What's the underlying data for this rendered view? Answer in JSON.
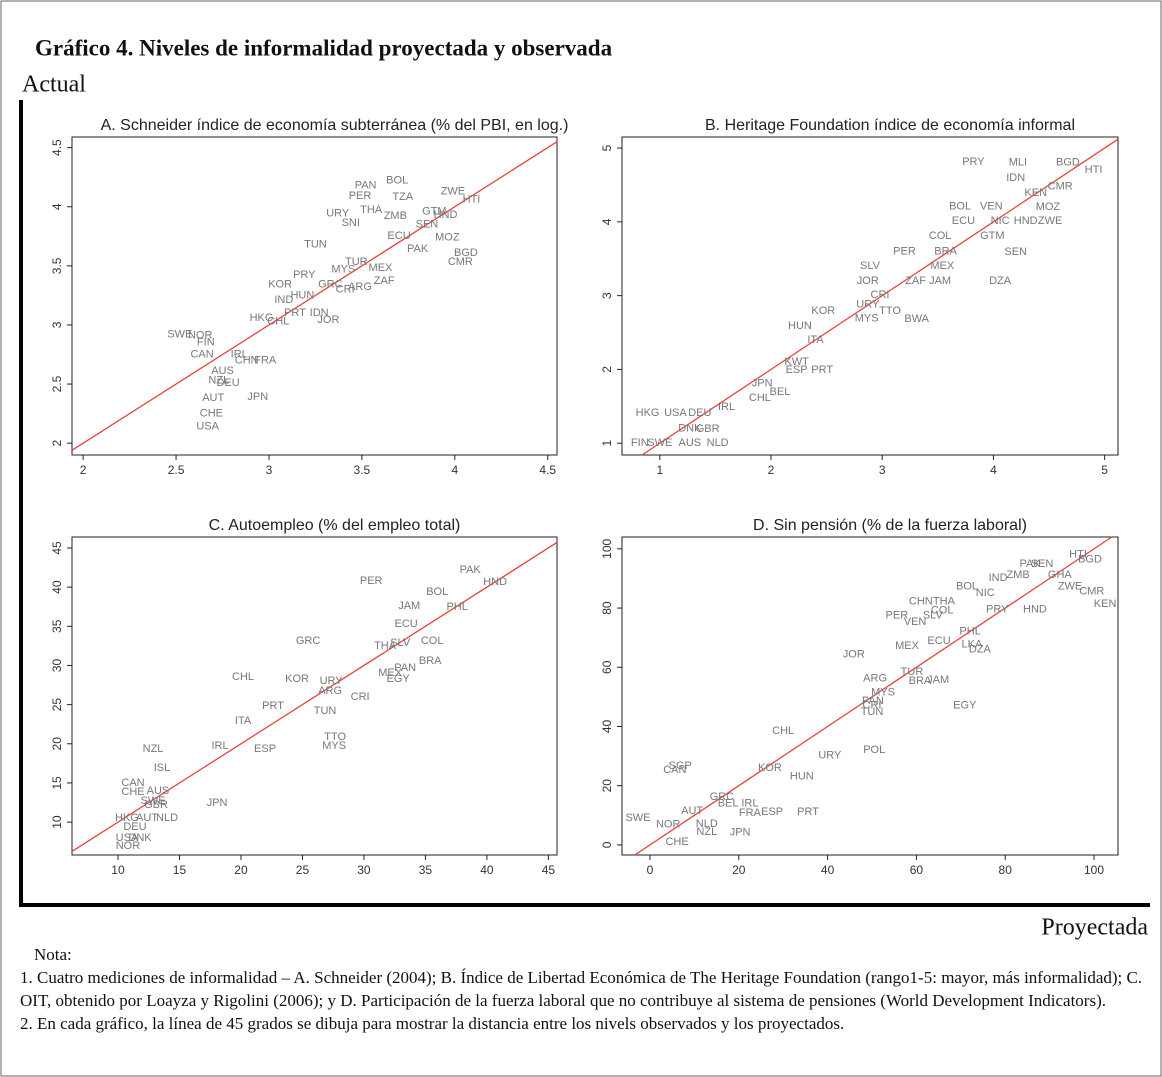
{
  "title": "Gráfico 4. Niveles de informalidad proyectada y observada",
  "y_label": "Actual",
  "x_label": "Proyectada",
  "notes": [
    "Nota:",
    "1. Cuatro mediciones de informalidad – A. Schneider (2004); B. Índice de Libertad Económica de The Heritage Foundation (rango1-5: mayor, más informalidad); C. OIT, obtenido por Loayza y Rigolini (2006); y D. Participación de la fuerza laboral que no contribuye al sistema de pensiones (World Development Indicators).",
    "2. En cada gráfico, la línea de 45 grados se dibuja para mostrar la distancia entre los nivels observados y los proyectados."
  ],
  "chart_data": [
    {
      "type": "scatter",
      "title": "A. Schneider índice de economía subterránea (% del PBI, en log.)",
      "diagonal": true,
      "diagonal_color": "#e8413c",
      "label_color": "#777777",
      "xlim": [
        1.94,
        4.55
      ],
      "ylim": [
        1.9,
        4.59
      ],
      "xticks": [
        2,
        2.5,
        3,
        3.5,
        4,
        4.5
      ],
      "yticks": [
        2,
        2.5,
        3,
        3.5,
        4,
        4.5
      ],
      "labels": [
        "PAN",
        "BOL",
        "PER",
        "TZA",
        "ZWE",
        "HTI",
        "URY",
        "THA",
        "ZMB",
        "SNI",
        "GTM",
        "HND",
        "SEN",
        "ECU",
        "MOZ",
        "TUN",
        "PAK",
        "BGD",
        "CMR",
        "MEX",
        "TUR",
        "ZAF",
        "PRY",
        "MYS",
        "KOR",
        "GRC",
        "CRI",
        "ARG",
        "HUN",
        "IND",
        "PRT",
        "IDN",
        "HKG",
        "CHL",
        "JOR",
        "SWE",
        "NOR",
        "FIN",
        "CAN",
        "IRL",
        "CHN",
        "FRA",
        "AUS",
        "NZL",
        "DEU",
        "AUT",
        "JPN",
        "CHE",
        "USA"
      ],
      "x": [
        3.52,
        3.69,
        3.49,
        3.72,
        3.99,
        4.09,
        3.37,
        3.55,
        3.68,
        3.44,
        3.89,
        3.95,
        3.85,
        3.7,
        3.96,
        3.25,
        3.8,
        4.06,
        4.03,
        3.6,
        3.47,
        3.62,
        3.19,
        3.4,
        3.06,
        3.33,
        3.41,
        3.49,
        3.18,
        3.08,
        3.14,
        3.27,
        2.96,
        3.05,
        3.32,
        2.52,
        2.63,
        2.66,
        2.64,
        2.84,
        2.88,
        2.98,
        2.75,
        2.73,
        2.78,
        2.7,
        2.94,
        2.69,
        2.67
      ],
      "values": [
        4.18,
        4.22,
        4.09,
        4.08,
        4.13,
        4.06,
        3.94,
        3.97,
        3.92,
        3.86,
        3.96,
        3.93,
        3.85,
        3.75,
        3.74,
        3.68,
        3.64,
        3.61,
        3.53,
        3.48,
        3.53,
        3.37,
        3.42,
        3.47,
        3.34,
        3.34,
        3.3,
        3.32,
        3.25,
        3.21,
        3.1,
        3.1,
        3.06,
        3.03,
        3.04,
        2.92,
        2.91,
        2.85,
        2.75,
        2.75,
        2.7,
        2.7,
        2.61,
        2.53,
        2.51,
        2.38,
        2.39,
        2.25,
        2.14
      ]
    },
    {
      "type": "scatter",
      "title": "B. Heritage Foundation índice de economía informal",
      "diagonal": true,
      "diagonal_color": "#e8413c",
      "label_color": "#777777",
      "xlim": [
        0.66,
        5.12
      ],
      "ylim": [
        0.84,
        5.15
      ],
      "xticks": [
        1,
        2,
        3,
        4,
        5
      ],
      "yticks": [
        1,
        2,
        3,
        4,
        5
      ],
      "labels": [
        "PRY",
        "MLI",
        "BGD",
        "HTI",
        "IDN",
        "KEN",
        "CMR",
        "BOL",
        "VEN",
        "MOZ",
        "ECU",
        "NIC",
        "HND",
        "ZWE",
        "GTM",
        "COL",
        "BRA",
        "PER",
        "SEN",
        "SLV",
        "MEX",
        "JOR",
        "ZAF",
        "JAM",
        "DZA",
        "CRI",
        "URY",
        "TTO",
        "KOR",
        "MYS",
        "BWA",
        "HUN",
        "ITA",
        "KWT",
        "ESP",
        "PRT",
        "JPN",
        "BEL",
        "CHL",
        "IRL",
        "HKG",
        "USA",
        "DEU",
        "DNK",
        "GBR",
        "FIN",
        "SWE",
        "AUS",
        "NLD"
      ],
      "x": [
        3.82,
        4.22,
        4.67,
        4.9,
        4.2,
        4.38,
        4.6,
        3.7,
        3.98,
        4.49,
        3.73,
        4.06,
        4.29,
        4.51,
        3.99,
        3.52,
        3.57,
        3.2,
        4.2,
        2.89,
        3.54,
        2.87,
        3.3,
        3.52,
        4.06,
        2.98,
        2.87,
        3.07,
        2.47,
        2.86,
        3.31,
        2.26,
        2.4,
        2.23,
        2.23,
        2.46,
        1.92,
        2.08,
        1.9,
        1.6,
        0.89,
        1.14,
        1.36,
        1.27,
        1.43,
        0.82,
        1.0,
        1.27,
        1.52
      ],
      "values": [
        4.81,
        4.8,
        4.8,
        4.7,
        4.59,
        4.39,
        4.48,
        4.21,
        4.21,
        4.2,
        4.01,
        4.01,
        4.01,
        4.01,
        3.81,
        3.81,
        3.6,
        3.6,
        3.59,
        3.4,
        3.4,
        3.2,
        3.2,
        3.2,
        3.2,
        3.01,
        2.88,
        2.79,
        2.79,
        2.69,
        2.68,
        2.59,
        2.4,
        2.1,
        1.99,
        1.99,
        1.81,
        1.69,
        1.61,
        1.49,
        1.41,
        1.41,
        1.41,
        1.2,
        1.19,
        1.0,
        1.0,
        1.0,
        1.0
      ]
    },
    {
      "type": "scatter",
      "title": "C. Autoempleo (% del empleo total)",
      "diagonal": true,
      "diagonal_color": "#e8413c",
      "label_color": "#777777",
      "xlim": [
        6.26,
        45.7
      ],
      "ylim": [
        5.8,
        46.4
      ],
      "xticks": [
        10,
        15,
        20,
        25,
        30,
        35,
        40,
        45
      ],
      "yticks": [
        10,
        15,
        20,
        25,
        30,
        35,
        40,
        45
      ],
      "labels": [
        "PAK",
        "HND",
        "PER",
        "BOL",
        "JAM",
        "PHL",
        "ECU",
        "GRC",
        "COL",
        "SLV",
        "THA",
        "BRA",
        "PAN",
        "MEX",
        "EGY",
        "CHL",
        "KOR",
        "URY",
        "ARG",
        "CRI",
        "PRT",
        "TUN",
        "ITA",
        "TTO",
        "MYS",
        "NZL",
        "IRL",
        "ESP",
        "ISL",
        "CAN",
        "CHE",
        "AUS",
        "SWE",
        "GBR",
        "JPN",
        "HKG",
        "AUT",
        "NLD",
        "DEU",
        "USA",
        "DNK",
        "NOR"
      ],
      "x": [
        38.64,
        40.67,
        30.59,
        35.96,
        33.68,
        37.58,
        33.43,
        25.46,
        35.55,
        32.95,
        31.72,
        35.39,
        33.35,
        32.13,
        32.78,
        20.17,
        24.56,
        27.33,
        27.25,
        29.69,
        22.61,
        26.84,
        20.17,
        27.66,
        27.58,
        12.85,
        18.3,
        21.96,
        13.58,
        11.22,
        11.22,
        13.25,
        12.85,
        13.09,
        18.06,
        10.73,
        12.36,
        13.99,
        11.38,
        10.73,
        11.79,
        10.81
      ],
      "values": [
        42.19,
        40.66,
        40.79,
        39.38,
        37.59,
        37.46,
        35.29,
        33.12,
        33.12,
        32.87,
        32.48,
        30.57,
        29.67,
        29.04,
        28.27,
        28.52,
        28.27,
        28.01,
        26.74,
        25.97,
        24.82,
        24.18,
        22.91,
        20.86,
        19.71,
        19.33,
        19.71,
        19.33,
        16.9,
        14.99,
        13.84,
        13.97,
        12.69,
        12.18,
        12.44,
        10.52,
        10.52,
        10.52,
        9.37,
        7.96,
        7.96,
        6.94
      ]
    },
    {
      "type": "scatter",
      "title": "D. Sin pensión (% de la fuerza laboral)",
      "diagonal": true,
      "diagonal_color": "#e8413c",
      "label_color": "#777777",
      "xlim": [
        -6.3,
        105.4
      ],
      "ylim": [
        -3.4,
        104
      ],
      "xticks": [
        0,
        20,
        40,
        60,
        80,
        100
      ],
      "yticks": [
        0,
        20,
        40,
        60,
        80,
        100
      ],
      "labels": [
        "HTI",
        "BGD",
        "PAK",
        "SEN",
        "ZMB",
        "IND",
        "GHA",
        "ZWE",
        "CMR",
        "KEN",
        "BOL",
        "NIC",
        "CHN",
        "THA",
        "COL",
        "PRY",
        "HND",
        "PER",
        "SLV",
        "VEN",
        "PHL",
        "MEX",
        "ECU",
        "LKA",
        "DZA",
        "JOR",
        "ARG",
        "TUR",
        "BRA",
        "JAM",
        "MYS",
        "PAN",
        "CRI",
        "TUN",
        "EGY",
        "CHL",
        "POL",
        "URY",
        "KOR",
        "HUN",
        "SGP",
        "CAN",
        "GRC",
        "BEL",
        "IRL",
        "FRA",
        "ESP",
        "PRT",
        "SWE",
        "AUT",
        "NOR",
        "NLD",
        "NZL",
        "JPN",
        "CHE"
      ],
      "x": [
        96.4,
        99.1,
        85.6,
        88.3,
        82.9,
        78.4,
        92.3,
        94.6,
        99.5,
        102.5,
        71.4,
        75.5,
        61.0,
        66.2,
        65.8,
        78.2,
        86.7,
        55.6,
        63.7,
        59.7,
        72.1,
        57.9,
        65.1,
        72.5,
        74.3,
        45.9,
        50.7,
        59.0,
        60.8,
        64.9,
        52.5,
        50.2,
        50.0,
        50.0,
        70.9,
        30.0,
        50.5,
        40.5,
        27.0,
        34.2,
        6.8,
        5.6,
        16.2,
        17.6,
        22.5,
        22.5,
        27.5,
        35.6,
        -2.7,
        9.5,
        4.1,
        12.8,
        12.8,
        20.3,
        6.1
      ],
      "values": [
        98.0,
        96.3,
        94.9,
        94.9,
        91.2,
        90.2,
        91.2,
        87.2,
        85.5,
        81.4,
        87.2,
        85.1,
        82.1,
        82.1,
        79.1,
        79.4,
        79.4,
        77.4,
        77.4,
        75.3,
        72.0,
        67.2,
        68.9,
        67.6,
        65.9,
        64.2,
        56.1,
        58.4,
        55.4,
        55.7,
        51.4,
        48.6,
        47.0,
        44.9,
        47.0,
        38.5,
        32.1,
        30.1,
        26.0,
        23.0,
        26.7,
        25.3,
        16.2,
        13.9,
        13.9,
        10.8,
        11.1,
        11.1,
        9.1,
        11.5,
        6.8,
        7.1,
        4.4,
        4.1,
        1.0
      ]
    }
  ]
}
